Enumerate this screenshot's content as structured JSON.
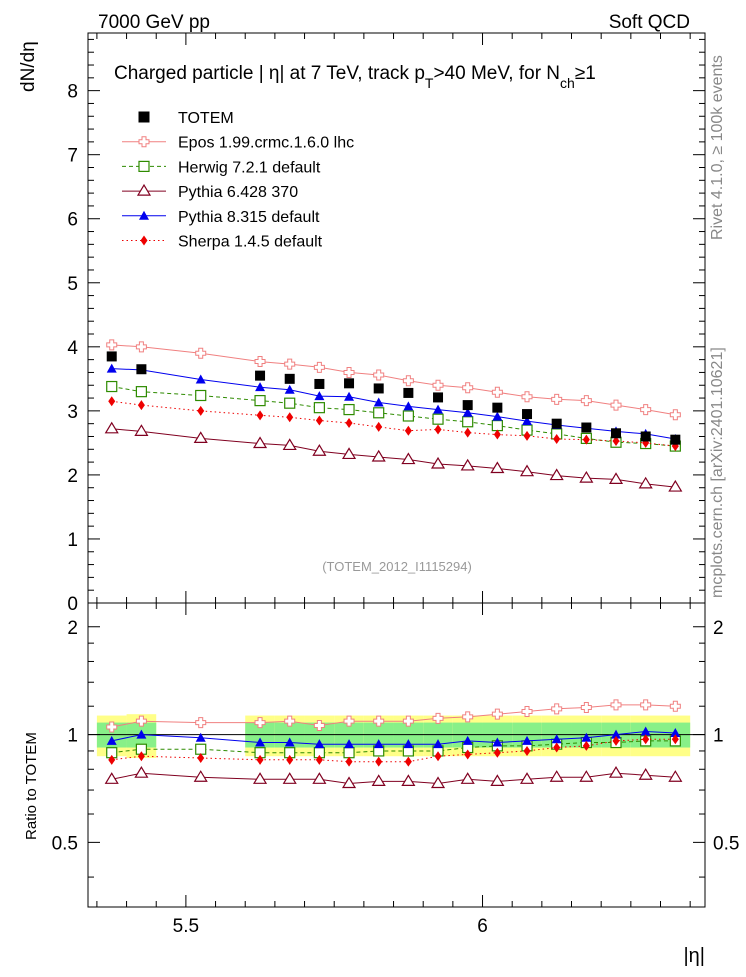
{
  "header": {
    "left_label": "7000 GeV pp",
    "right_label": "Soft QCD"
  },
  "side_labels": {
    "rivet": "Rivet 4.1.0, ≥ 100k events",
    "mcplots": "mcplots.cern.ch [arXiv:2401.10621]"
  },
  "chart_data": [
    {
      "type": "scatter",
      "panel": "main",
      "title": "Charged particle | η| at 7 TeV, track p_T>40 MeV, for N_ch≥1",
      "title_parts": {
        "main": "Charged particle | η| at 7 TeV, track p",
        "sub1": "T",
        "mid": ">40 MeV, for N",
        "sub2": "ch",
        "end": "≥1"
      },
      "ylabel": "dN/dη",
      "xlabel": "|η|",
      "watermark": "(TOTEM_2012_I1115294)",
      "xlim": [
        5.335,
        6.375
      ],
      "ylim": [
        0,
        8.9
      ],
      "yticks": [
        0,
        1,
        2,
        3,
        4,
        5,
        6,
        7,
        8
      ],
      "ytick_labels": [
        "0",
        "1",
        "2",
        "3",
        "4",
        "5",
        "6",
        "7",
        "8"
      ],
      "x": [
        5.375,
        5.425,
        5.525,
        5.625,
        5.675,
        5.725,
        5.775,
        5.825,
        5.875,
        5.925,
        5.975,
        6.025,
        6.075,
        6.125,
        6.175,
        6.225,
        6.275,
        6.325
      ],
      "data": {
        "name": "TOTEM",
        "x": [
          5.375,
          5.425,
          5.625,
          5.675,
          5.725,
          5.775,
          5.825,
          5.875,
          5.925,
          5.975,
          6.025,
          6.075,
          6.125,
          6.175,
          6.225,
          6.275,
          6.325
        ],
        "values": [
          3.85,
          3.65,
          3.55,
          3.5,
          3.42,
          3.43,
          3.35,
          3.28,
          3.21,
          3.09,
          3.05,
          2.95,
          2.8,
          2.74,
          2.65,
          2.6,
          2.55
        ]
      },
      "series": [
        {
          "name": "Epos 1.99.crmc.1.6.0 lhc",
          "color": "#f08080",
          "marker": "open-cross",
          "line": "solid",
          "values": [
            4.03,
            4.0,
            3.9,
            3.77,
            3.73,
            3.68,
            3.6,
            3.56,
            3.47,
            3.4,
            3.36,
            3.29,
            3.22,
            3.18,
            3.16,
            3.09,
            3.02,
            2.94
          ]
        },
        {
          "name": "Herwig 7.2.1 default",
          "color": "#2e8b00",
          "marker": "open-square",
          "line": "dashed",
          "values": [
            3.38,
            3.3,
            3.24,
            3.16,
            3.12,
            3.05,
            3.02,
            2.97,
            2.92,
            2.87,
            2.83,
            2.77,
            2.7,
            2.64,
            2.57,
            2.51,
            2.49,
            2.45
          ]
        },
        {
          "name": "Pythia 6.428 370",
          "color": "#800020",
          "marker": "open-triangle",
          "line": "solid",
          "values": [
            2.72,
            2.68,
            2.57,
            2.49,
            2.46,
            2.37,
            2.32,
            2.28,
            2.24,
            2.17,
            2.14,
            2.1,
            2.05,
            1.99,
            1.95,
            1.93,
            1.86,
            1.81
          ]
        },
        {
          "name": "Pythia 8.315 default",
          "color": "#0000ee",
          "marker": "filled-triangle",
          "line": "solid",
          "values": [
            3.66,
            3.64,
            3.49,
            3.37,
            3.33,
            3.23,
            3.22,
            3.13,
            3.07,
            3.02,
            2.97,
            2.91,
            2.84,
            2.78,
            2.73,
            2.68,
            2.64,
            2.56
          ]
        },
        {
          "name": "Sherpa 1.4.5 default",
          "color": "#ee0000",
          "marker": "filled-diamond",
          "line": "dotted",
          "values": [
            3.15,
            3.09,
            3.0,
            2.93,
            2.9,
            2.85,
            2.81,
            2.75,
            2.69,
            2.71,
            2.66,
            2.63,
            2.61,
            2.56,
            2.55,
            2.53,
            2.5,
            2.45
          ]
        }
      ],
      "legend": [
        "TOTEM",
        "Epos 1.99.crmc.1.6.0 lhc",
        "Herwig 7.2.1 default",
        "Pythia 6.428 370",
        "Pythia 8.315 default",
        "Sherpa 1.4.5 default"
      ],
      "legend_position": "top-left"
    },
    {
      "type": "scatter",
      "panel": "ratio",
      "ylabel": "Ratio to TOTEM",
      "xlabel": "|η|",
      "xlim": [
        5.335,
        6.375
      ],
      "ylim": [
        0.33,
        2.33
      ],
      "yticks": [
        0.5,
        1,
        2
      ],
      "ytick_labels": [
        "0.5",
        "1",
        "2"
      ],
      "xticks": [
        5.5,
        6.0
      ],
      "xtick_labels": [
        "5.5",
        "6"
      ],
      "band_x": [
        5.375,
        5.425,
        5.625,
        5.675,
        5.725,
        5.775,
        5.825,
        5.875,
        5.925,
        5.975,
        6.025,
        6.075,
        6.125,
        6.175,
        6.225,
        6.275,
        6.325
      ],
      "band_stat": [
        0.08,
        0.08,
        0.08,
        0.08,
        0.08,
        0.08,
        0.08,
        0.08,
        0.08,
        0.08,
        0.08,
        0.08,
        0.08,
        0.08,
        0.08,
        0.08,
        0.08
      ],
      "band_total": [
        0.13,
        0.14,
        0.13,
        0.13,
        0.13,
        0.13,
        0.13,
        0.13,
        0.13,
        0.13,
        0.13,
        0.13,
        0.13,
        0.13,
        0.13,
        0.13,
        0.13
      ],
      "series": [
        {
          "name": "Epos 1.99.crmc.1.6.0 lhc",
          "values": [
            1.05,
            1.09,
            1.08,
            1.08,
            1.09,
            1.06,
            1.09,
            1.09,
            1.09,
            1.11,
            1.12,
            1.14,
            1.16,
            1.18,
            1.19,
            1.21,
            1.21,
            1.2
          ]
        },
        {
          "name": "Herwig 7.2.1 default",
          "values": [
            0.89,
            0.91,
            0.91,
            0.89,
            0.89,
            0.89,
            0.89,
            0.9,
            0.9,
            0.9,
            0.92,
            0.93,
            0.93,
            0.94,
            0.95,
            0.95,
            0.96,
            0.96
          ]
        },
        {
          "name": "Pythia 6.428 370",
          "values": [
            0.75,
            0.78,
            0.76,
            0.75,
            0.75,
            0.75,
            0.73,
            0.74,
            0.74,
            0.73,
            0.75,
            0.74,
            0.75,
            0.76,
            0.76,
            0.78,
            0.77,
            0.76
          ]
        },
        {
          "name": "Pythia 8.315 default",
          "values": [
            0.96,
            1.0,
            0.98,
            0.95,
            0.95,
            0.94,
            0.94,
            0.94,
            0.94,
            0.94,
            0.96,
            0.95,
            0.96,
            0.97,
            0.98,
            1.0,
            1.02,
            1.01
          ]
        },
        {
          "name": "Sherpa 1.4.5 default",
          "values": [
            0.85,
            0.87,
            0.86,
            0.85,
            0.85,
            0.85,
            0.84,
            0.84,
            0.84,
            0.87,
            0.88,
            0.89,
            0.9,
            0.92,
            0.93,
            0.96,
            0.97,
            0.97
          ]
        }
      ]
    }
  ]
}
